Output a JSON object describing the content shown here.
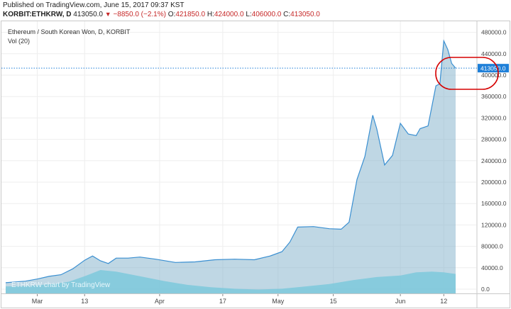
{
  "header": {
    "published": "Published on TradingView.com, June 15, 2017 09:37 KST",
    "symbol": "KORBIT:ETHKRW, D",
    "last": "413050.0",
    "change": "−8850.0 (−2.1%)",
    "open_label": "O:",
    "open": "421850.0",
    "high_label": "H:",
    "high": "424000.0",
    "low_label": "L:",
    "low": "406000.0",
    "close_label": "C:",
    "close": "413050.0"
  },
  "legend": {
    "title": "Ethereum / South Korean Won, D, KORBIT",
    "volume": "Vol (20)"
  },
  "watermark": "ETHKRW chart by TradingView",
  "current_price_label": "413050.0",
  "colors": {
    "price_fill": "#8ab6ce",
    "price_line": "#3a8fd1",
    "volume_fill": "#6fe0ec",
    "price_marker": "#1e7fd8",
    "highlight_ellipse": "#d50000"
  },
  "chart_data": {
    "type": "area",
    "title": "Ethereum / South Korean Won, D, KORBIT",
    "y_axis": {
      "position": "right",
      "ticks": [
        0,
        40000,
        80000,
        120000,
        160000,
        200000,
        240000,
        280000,
        320000,
        360000,
        400000,
        440000,
        480000
      ],
      "tick_labels": [
        "0.0",
        "40000.0",
        "80000.0",
        "120000.0",
        "160000.0",
        "200000.0",
        "240000.0",
        "280000.0",
        "320000.0",
        "360000.0",
        "400000.0",
        "440000.0",
        "480000.0"
      ]
    },
    "x_axis": {
      "tick_labels": [
        "Mar",
        "13",
        "Apr",
        "17",
        "May",
        "15",
        "Jun",
        "12"
      ]
    },
    "series": [
      {
        "name": "Price",
        "x": [
          "2017-02-21",
          "2017-02-26",
          "2017-03-01",
          "2017-03-04",
          "2017-03-07",
          "2017-03-10",
          "2017-03-13",
          "2017-03-15",
          "2017-03-17",
          "2017-03-19",
          "2017-03-21",
          "2017-03-24",
          "2017-03-27",
          "2017-03-31",
          "2017-04-05",
          "2017-04-10",
          "2017-04-15",
          "2017-04-20",
          "2017-04-25",
          "2017-04-29",
          "2017-05-02",
          "2017-05-04",
          "2017-05-06",
          "2017-05-10",
          "2017-05-14",
          "2017-05-17",
          "2017-05-19",
          "2017-05-21",
          "2017-05-23",
          "2017-05-25",
          "2017-05-26",
          "2017-05-28",
          "2017-05-30",
          "2017-06-01",
          "2017-06-03",
          "2017-06-05",
          "2017-06-06",
          "2017-06-08",
          "2017-06-10",
          "2017-06-11",
          "2017-06-12",
          "2017-06-13",
          "2017-06-14",
          "2017-06-15"
        ],
        "y": [
          12000,
          15000,
          19000,
          24000,
          27000,
          38000,
          54000,
          62000,
          53000,
          48000,
          58000,
          58000,
          60000,
          56000,
          50000,
          51000,
          55000,
          56000,
          55000,
          62000,
          70000,
          88000,
          116000,
          117000,
          113000,
          112000,
          125000,
          205000,
          248000,
          325000,
          300000,
          232000,
          250000,
          310000,
          290000,
          287000,
          300000,
          305000,
          380000,
          384000,
          464000,
          448000,
          421850,
          413050
        ]
      },
      {
        "name": "Vol (20)",
        "x": [
          "2017-02-21",
          "2017-02-26",
          "2017-03-01",
          "2017-03-05",
          "2017-03-09",
          "2017-03-13",
          "2017-03-17",
          "2017-03-21",
          "2017-03-27",
          "2017-04-02",
          "2017-04-08",
          "2017-04-14",
          "2017-04-20",
          "2017-04-26",
          "2017-05-02",
          "2017-05-08",
          "2017-05-14",
          "2017-05-20",
          "2017-05-26",
          "2017-06-01",
          "2017-06-05",
          "2017-06-09",
          "2017-06-12",
          "2017-06-15"
        ],
        "y": [
          9000,
          9500,
          10500,
          12000,
          15000,
          22000,
          30000,
          28000,
          22000,
          16000,
          11000,
          8000,
          6000,
          5000,
          6000,
          9000,
          12000,
          17000,
          21000,
          23000,
          27000,
          28000,
          27000,
          25000
        ]
      }
    ]
  }
}
